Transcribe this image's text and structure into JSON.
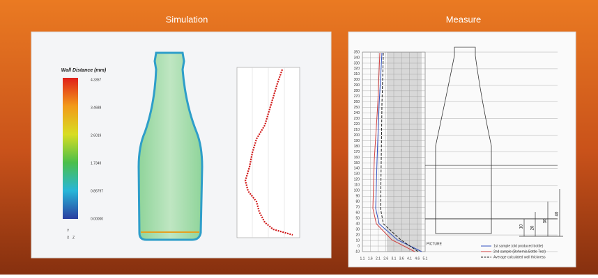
{
  "slide": {
    "left_title": "Simulation",
    "right_title": "Measure"
  },
  "simulation": {
    "legend_title": "Wall Distance (mm)",
    "legend_labels": [
      "4.3357",
      "3.4688",
      "2.6019",
      "1.7349",
      "0.86797",
      "0.00000"
    ],
    "triad": [
      "Y",
      "X",
      "Z"
    ]
  },
  "measure": {
    "y_labels": [
      "350",
      "340",
      "330",
      "320",
      "310",
      "300",
      "290",
      "280",
      "270",
      "260",
      "250",
      "240",
      "230",
      "220",
      "210",
      "200",
      "190",
      "180",
      "170",
      "160",
      "150",
      "140",
      "130",
      "120",
      "110",
      "100",
      "90",
      "80",
      "70",
      "60",
      "50",
      "40",
      "30",
      "20",
      "10",
      "0",
      "-10"
    ],
    "x_labels": [
      "1.1",
      "1.6",
      "2.1",
      "2.6",
      "3.1",
      "3.6",
      "4.1",
      "4.6",
      "5.1"
    ],
    "picture_label": "PICTURE",
    "legend": [
      "1st sample (old produced bottle)",
      "2nd sample (Bohemia Bottle Test)",
      "Average calculated wall thickness"
    ],
    "dimensions": [
      "10",
      "20",
      "30",
      "40"
    ]
  }
}
